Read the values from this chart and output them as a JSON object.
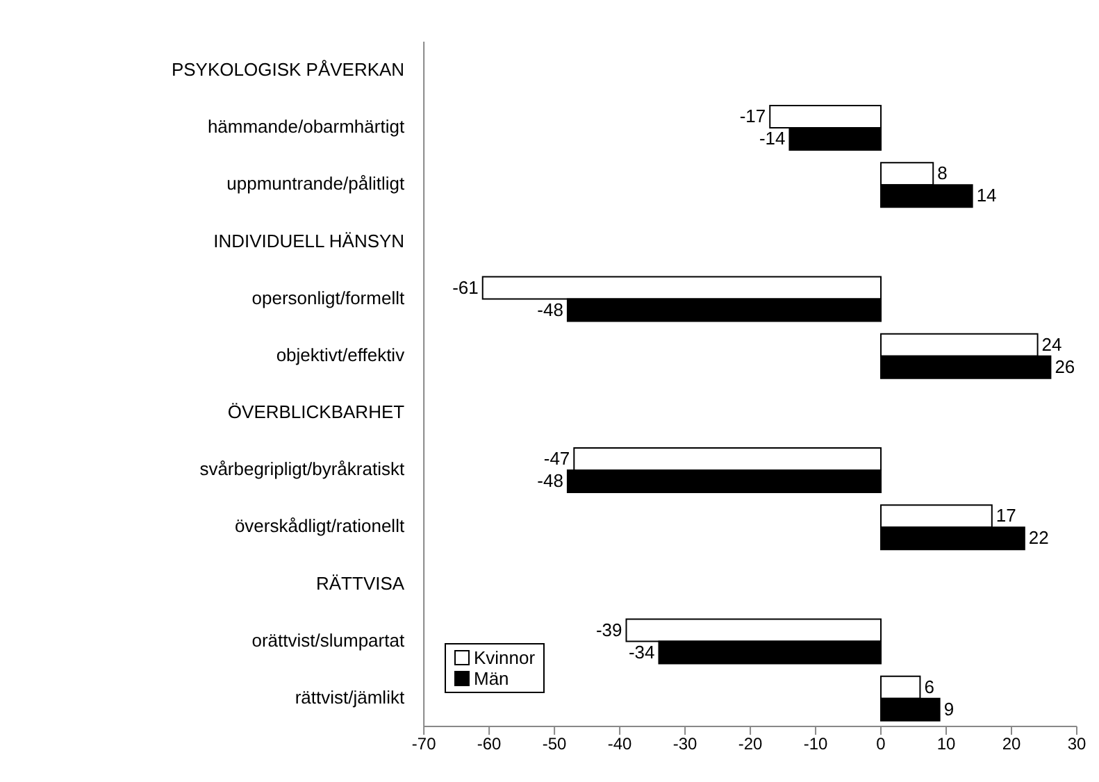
{
  "chart_data": {
    "type": "bar",
    "orientation": "horizontal",
    "categories": [
      "PSYKOLOGISK PÅVERKAN",
      "hämmande/obarmhärtigt",
      "uppmuntrande/pålitligt",
      "INDIVIDUELL HÄNSYN",
      "opersonligt/formellt",
      "objektivt/effektiv",
      "ÖVERBLICKBARHET",
      "svårbegripligt/byråkratiskt",
      "överskådligt/rationellt",
      "RÄTTVISA",
      "orättvist/slumpartat",
      "rättvist/jämlikt"
    ],
    "series": [
      {
        "name": "Kvinnor",
        "color": "#ffffff",
        "values": [
          null,
          -17,
          8,
          null,
          -61,
          24,
          null,
          -47,
          17,
          null,
          -39,
          6
        ]
      },
      {
        "name": "Män",
        "color": "#000000",
        "values": [
          null,
          -14,
          14,
          null,
          -48,
          26,
          null,
          -48,
          22,
          null,
          -34,
          9
        ]
      }
    ],
    "xlim": [
      -70,
      30
    ],
    "xticks": [
      -70,
      -60,
      -50,
      -40,
      -30,
      -20,
      -10,
      0,
      10,
      20,
      30
    ],
    "data_labels": true,
    "legend": "bottom left",
    "grid": false
  }
}
